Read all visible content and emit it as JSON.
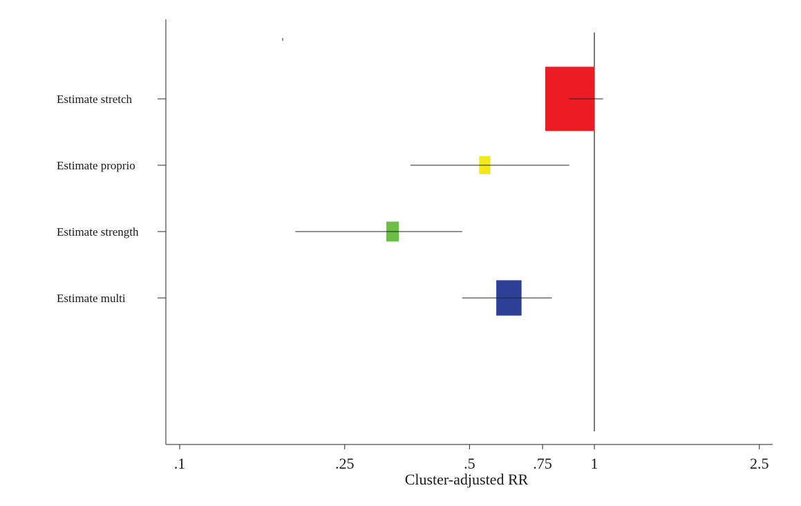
{
  "chart_data": {
    "type": "forest",
    "xlabel": "Cluster-adjusted RR",
    "x_scale": "log",
    "xlim": [
      0.1,
      2.5
    ],
    "x_ticks": [
      {
        "value": 0.1,
        "label": ".1"
      },
      {
        "value": 0.25,
        "label": ".25"
      },
      {
        "value": 0.5,
        "label": ".5"
      },
      {
        "value": 0.75,
        "label": ".75"
      },
      {
        "value": 1,
        "label": "1"
      },
      {
        "value": 2.5,
        "label": "2.5"
      }
    ],
    "reference_line": 1,
    "rows": [
      {
        "label": "Estimate stretch",
        "estimate": 1.0,
        "ci_low": 0.87,
        "ci_high": 1.05,
        "weight": 1.0,
        "color": "#ed1c24"
      },
      {
        "label": "Estimate proprio",
        "estimate": 0.55,
        "ci_low": 0.36,
        "ci_high": 0.87,
        "weight": 0.28,
        "color": "#f2e81b"
      },
      {
        "label": "Estimate strength",
        "estimate": 0.33,
        "ci_low": 0.19,
        "ci_high": 0.48,
        "weight": 0.31,
        "color": "#6cbf44"
      },
      {
        "label": "Estimate multi",
        "estimate": 0.63,
        "ci_low": 0.48,
        "ci_high": 0.79,
        "weight": 0.55,
        "color": "#2e3f98"
      }
    ]
  }
}
